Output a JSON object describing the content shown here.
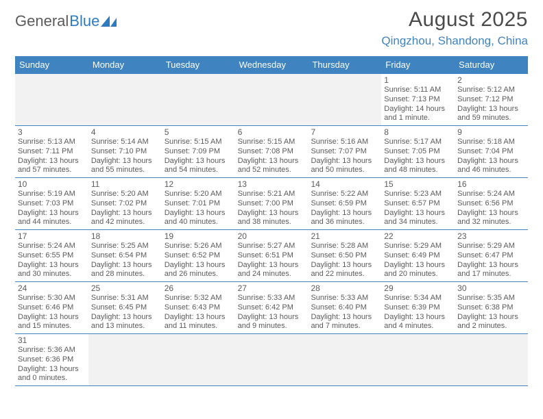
{
  "logo": {
    "part1": "General",
    "part2": "Blue"
  },
  "title": "August 2025",
  "location": "Qingzhou, Shandong, China",
  "header_bg": "#3f83c0",
  "weekdays": [
    "Sunday",
    "Monday",
    "Tuesday",
    "Wednesday",
    "Thursday",
    "Friday",
    "Saturday"
  ],
  "weeks": [
    [
      null,
      null,
      null,
      null,
      null,
      {
        "n": "1",
        "sr": "5:11 AM",
        "ss": "7:13 PM",
        "dl": "14 hours and 1 minute."
      },
      {
        "n": "2",
        "sr": "5:12 AM",
        "ss": "7:12 PM",
        "dl": "13 hours and 59 minutes."
      }
    ],
    [
      {
        "n": "3",
        "sr": "5:13 AM",
        "ss": "7:11 PM",
        "dl": "13 hours and 57 minutes."
      },
      {
        "n": "4",
        "sr": "5:14 AM",
        "ss": "7:10 PM",
        "dl": "13 hours and 55 minutes."
      },
      {
        "n": "5",
        "sr": "5:15 AM",
        "ss": "7:09 PM",
        "dl": "13 hours and 54 minutes."
      },
      {
        "n": "6",
        "sr": "5:15 AM",
        "ss": "7:08 PM",
        "dl": "13 hours and 52 minutes."
      },
      {
        "n": "7",
        "sr": "5:16 AM",
        "ss": "7:07 PM",
        "dl": "13 hours and 50 minutes."
      },
      {
        "n": "8",
        "sr": "5:17 AM",
        "ss": "7:05 PM",
        "dl": "13 hours and 48 minutes."
      },
      {
        "n": "9",
        "sr": "5:18 AM",
        "ss": "7:04 PM",
        "dl": "13 hours and 46 minutes."
      }
    ],
    [
      {
        "n": "10",
        "sr": "5:19 AM",
        "ss": "7:03 PM",
        "dl": "13 hours and 44 minutes."
      },
      {
        "n": "11",
        "sr": "5:20 AM",
        "ss": "7:02 PM",
        "dl": "13 hours and 42 minutes."
      },
      {
        "n": "12",
        "sr": "5:20 AM",
        "ss": "7:01 PM",
        "dl": "13 hours and 40 minutes."
      },
      {
        "n": "13",
        "sr": "5:21 AM",
        "ss": "7:00 PM",
        "dl": "13 hours and 38 minutes."
      },
      {
        "n": "14",
        "sr": "5:22 AM",
        "ss": "6:59 PM",
        "dl": "13 hours and 36 minutes."
      },
      {
        "n": "15",
        "sr": "5:23 AM",
        "ss": "6:57 PM",
        "dl": "13 hours and 34 minutes."
      },
      {
        "n": "16",
        "sr": "5:24 AM",
        "ss": "6:56 PM",
        "dl": "13 hours and 32 minutes."
      }
    ],
    [
      {
        "n": "17",
        "sr": "5:24 AM",
        "ss": "6:55 PM",
        "dl": "13 hours and 30 minutes."
      },
      {
        "n": "18",
        "sr": "5:25 AM",
        "ss": "6:54 PM",
        "dl": "13 hours and 28 minutes."
      },
      {
        "n": "19",
        "sr": "5:26 AM",
        "ss": "6:52 PM",
        "dl": "13 hours and 26 minutes."
      },
      {
        "n": "20",
        "sr": "5:27 AM",
        "ss": "6:51 PM",
        "dl": "13 hours and 24 minutes."
      },
      {
        "n": "21",
        "sr": "5:28 AM",
        "ss": "6:50 PM",
        "dl": "13 hours and 22 minutes."
      },
      {
        "n": "22",
        "sr": "5:29 AM",
        "ss": "6:49 PM",
        "dl": "13 hours and 20 minutes."
      },
      {
        "n": "23",
        "sr": "5:29 AM",
        "ss": "6:47 PM",
        "dl": "13 hours and 17 minutes."
      }
    ],
    [
      {
        "n": "24",
        "sr": "5:30 AM",
        "ss": "6:46 PM",
        "dl": "13 hours and 15 minutes."
      },
      {
        "n": "25",
        "sr": "5:31 AM",
        "ss": "6:45 PM",
        "dl": "13 hours and 13 minutes."
      },
      {
        "n": "26",
        "sr": "5:32 AM",
        "ss": "6:43 PM",
        "dl": "13 hours and 11 minutes."
      },
      {
        "n": "27",
        "sr": "5:33 AM",
        "ss": "6:42 PM",
        "dl": "13 hours and 9 minutes."
      },
      {
        "n": "28",
        "sr": "5:33 AM",
        "ss": "6:40 PM",
        "dl": "13 hours and 7 minutes."
      },
      {
        "n": "29",
        "sr": "5:34 AM",
        "ss": "6:39 PM",
        "dl": "13 hours and 4 minutes."
      },
      {
        "n": "30",
        "sr": "5:35 AM",
        "ss": "6:38 PM",
        "dl": "13 hours and 2 minutes."
      }
    ],
    [
      {
        "n": "31",
        "sr": "5:36 AM",
        "ss": "6:36 PM",
        "dl": "13 hours and 0 minutes."
      },
      null,
      null,
      null,
      null,
      null,
      null
    ]
  ],
  "labels": {
    "sunrise": "Sunrise: ",
    "sunset": "Sunset: ",
    "daylight": "Daylight: "
  }
}
